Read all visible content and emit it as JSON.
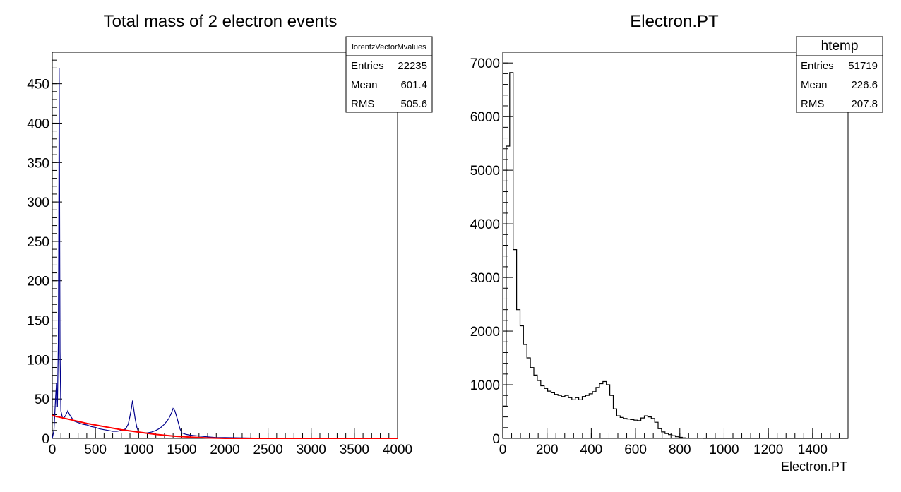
{
  "chart_data": [
    {
      "type": "histogram",
      "title": "Total mass of 2 electron events",
      "xlabel": "",
      "ylabel": "",
      "xlim": [
        0,
        4000
      ],
      "ylim": [
        0,
        490
      ],
      "x_ticks": [
        "0",
        "500",
        "1000",
        "1500",
        "2000",
        "2500",
        "3000",
        "3500",
        "4000"
      ],
      "y_ticks": [
        "0",
        "50",
        "100",
        "150",
        "200",
        "250",
        "300",
        "350",
        "400",
        "450"
      ],
      "stats_box": {
        "name": "lorentzVectorMvalues",
        "rows": [
          {
            "label": "Entries",
            "value": "22235"
          },
          {
            "label": "Mean",
            "value": "601.4"
          },
          {
            "label": "RMS",
            "value": "505.6"
          }
        ]
      },
      "series": [
        {
          "color": "#00008b",
          "points": [
            [
              0,
              0
            ],
            [
              20,
              10
            ],
            [
              40,
              55
            ],
            [
              50,
              70
            ],
            [
              60,
              40
            ],
            [
              70,
              120
            ],
            [
              75,
              260
            ],
            [
              80,
              470
            ],
            [
              85,
              300
            ],
            [
              90,
              110
            ],
            [
              100,
              35
            ],
            [
              120,
              25
            ],
            [
              150,
              28
            ],
            [
              180,
              35
            ],
            [
              200,
              30
            ],
            [
              250,
              22
            ],
            [
              300,
              20
            ],
            [
              350,
              18
            ],
            [
              400,
              17
            ],
            [
              450,
              15
            ],
            [
              500,
              14
            ],
            [
              550,
              12
            ],
            [
              600,
              11
            ],
            [
              650,
              10
            ],
            [
              700,
              9
            ],
            [
              750,
              9
            ],
            [
              800,
              10
            ],
            [
              850,
              12
            ],
            [
              880,
              18
            ],
            [
              900,
              28
            ],
            [
              920,
              40
            ],
            [
              930,
              48
            ],
            [
              940,
              40
            ],
            [
              960,
              25
            ],
            [
              980,
              14
            ],
            [
              1000,
              8
            ],
            [
              1050,
              7
            ],
            [
              1100,
              7
            ],
            [
              1150,
              8
            ],
            [
              1200,
              10
            ],
            [
              1250,
              13
            ],
            [
              1300,
              18
            ],
            [
              1350,
              25
            ],
            [
              1380,
              32
            ],
            [
              1400,
              38
            ],
            [
              1420,
              35
            ],
            [
              1440,
              28
            ],
            [
              1460,
              20
            ],
            [
              1480,
              12
            ],
            [
              1500,
              7
            ],
            [
              1550,
              5
            ],
            [
              1600,
              4
            ],
            [
              1700,
              3
            ],
            [
              1800,
              2
            ],
            [
              1900,
              1
            ],
            [
              2000,
              1
            ],
            [
              2500,
              0
            ],
            [
              3000,
              0
            ],
            [
              3500,
              0
            ],
            [
              4000,
              0
            ]
          ]
        },
        {
          "color": "#ff0000",
          "fit_points": [
            [
              0,
              29
            ],
            [
              200,
              24
            ],
            [
              400,
              19
            ],
            [
              600,
              15
            ],
            [
              800,
              11
            ],
            [
              1000,
              8
            ],
            [
              1200,
              5
            ],
            [
              1400,
              3
            ],
            [
              1600,
              1.5
            ],
            [
              1800,
              0.5
            ],
            [
              2000,
              0
            ],
            [
              4000,
              0
            ]
          ]
        }
      ]
    },
    {
      "type": "histogram",
      "title": "Electron.PT",
      "xlabel": "Electron.PT",
      "ylabel": "",
      "xlim": [
        0,
        1560
      ],
      "ylim": [
        0,
        7200
      ],
      "x_ticks": [
        "0",
        "200",
        "400",
        "600",
        "800",
        "1000",
        "1200",
        "1400"
      ],
      "y_ticks": [
        "0",
        "1000",
        "2000",
        "3000",
        "4000",
        "5000",
        "6000",
        "7000"
      ],
      "stats_box": {
        "name": "htemp",
        "rows": [
          {
            "label": "Entries",
            "value": "51719"
          },
          {
            "label": "Mean",
            "value": "226.6"
          },
          {
            "label": "RMS",
            "value": "207.8"
          }
        ]
      },
      "bin_width": 15.6,
      "bin_values": [
        600,
        5450,
        6820,
        3520,
        2400,
        2100,
        1750,
        1500,
        1320,
        1180,
        1080,
        980,
        930,
        880,
        850,
        820,
        800,
        780,
        800,
        760,
        720,
        760,
        720,
        780,
        800,
        830,
        870,
        950,
        1020,
        1060,
        1000,
        800,
        550,
        420,
        390,
        370,
        360,
        350,
        340,
        330,
        380,
        420,
        400,
        370,
        300,
        180,
        120,
        90,
        70,
        50,
        30,
        20,
        10,
        5,
        3,
        2,
        1,
        1,
        0,
        0,
        0,
        0,
        0,
        0,
        0,
        0,
        0,
        0,
        0,
        0,
        0,
        0,
        0,
        0,
        0,
        0,
        0,
        0,
        0,
        0,
        0,
        0,
        0,
        0,
        0,
        0,
        0,
        0,
        0,
        0,
        0,
        0,
        0,
        0,
        0,
        0,
        0,
        0,
        0,
        0
      ]
    }
  ]
}
